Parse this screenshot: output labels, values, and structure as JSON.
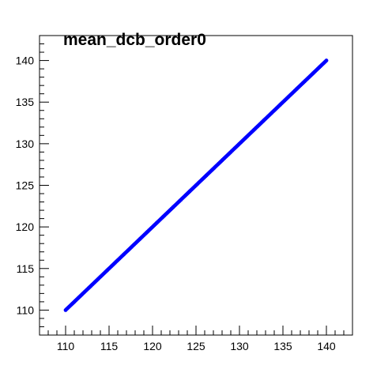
{
  "chart_data": {
    "type": "scatter",
    "title": "mean_dcb_order0",
    "xlabel": "",
    "ylabel": "",
    "xlim": [
      107,
      143
    ],
    "ylim": [
      107,
      143
    ],
    "x_ticks": [
      110,
      115,
      120,
      125,
      130,
      135,
      140
    ],
    "y_ticks": [
      110,
      115,
      120,
      125,
      130,
      135,
      140
    ],
    "grid": false,
    "legend": "none",
    "series": [
      {
        "color": "#0000ff",
        "x_start": 110,
        "x_end": 140,
        "step": 0.1,
        "relation": "y = x"
      }
    ]
  }
}
